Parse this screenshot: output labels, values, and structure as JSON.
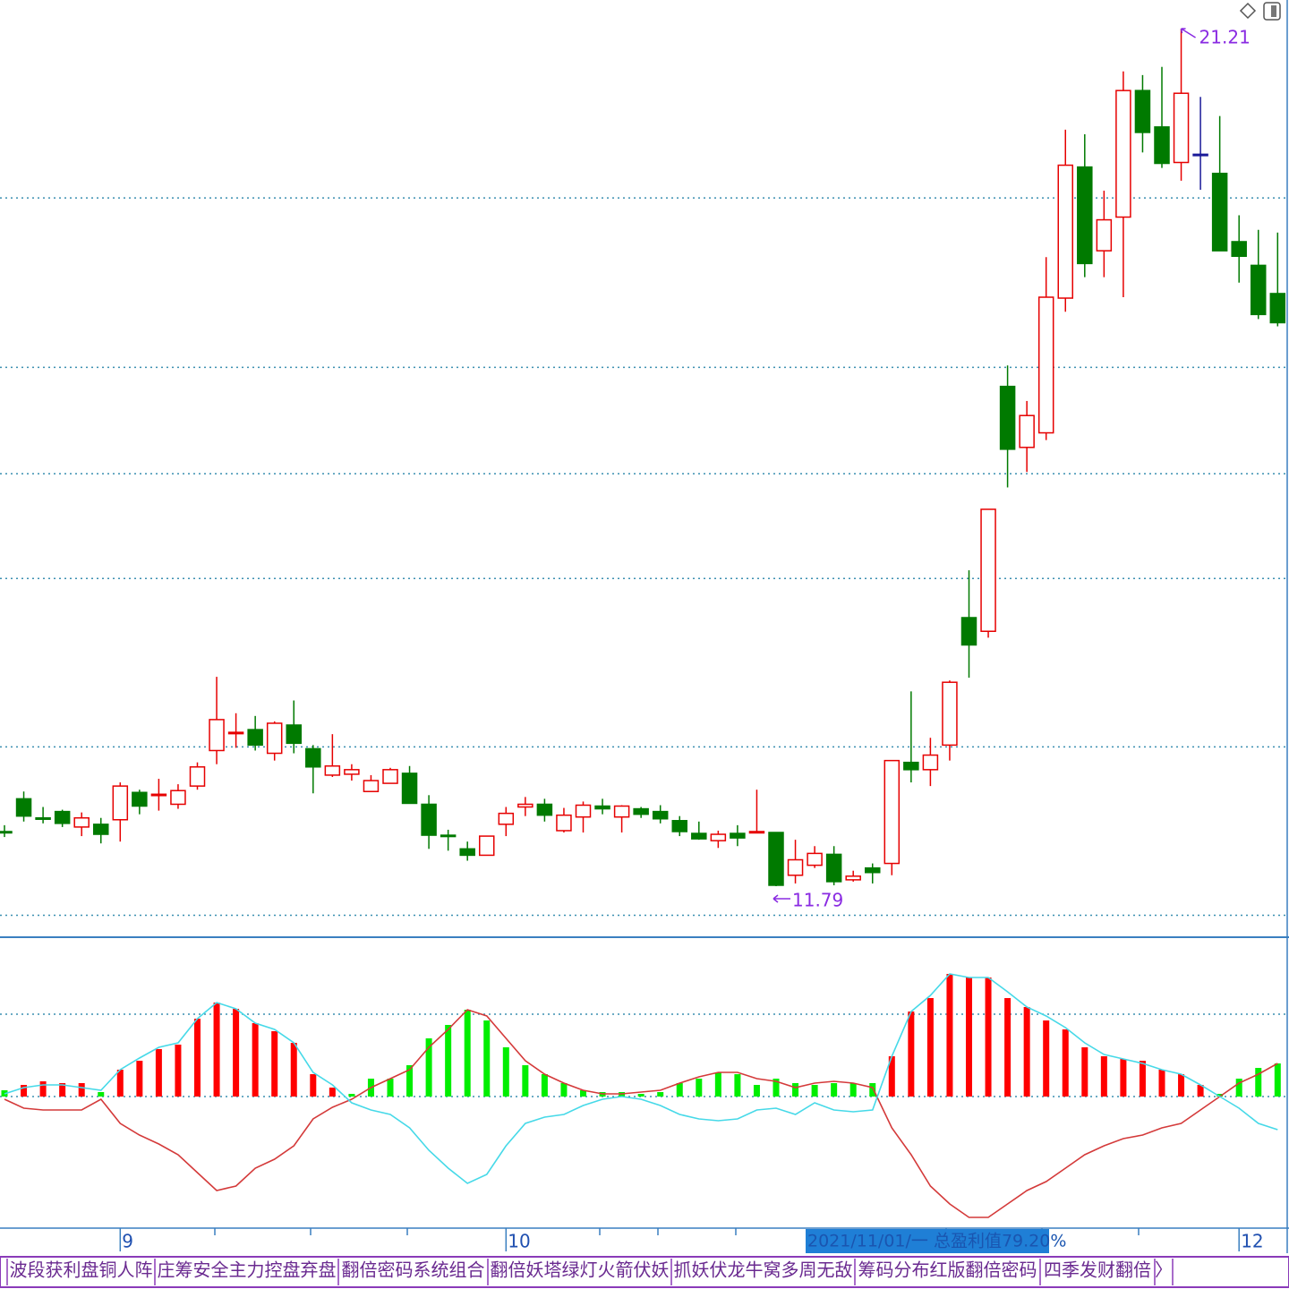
{
  "chart_data": {
    "type": "candlestick",
    "up_color": "#e60000",
    "down_color": "#007a00",
    "flat_color": "#1a1a99",
    "candles": {
      "open": [
        12.39,
        12.75,
        12.54,
        12.61,
        12.44,
        12.47,
        12.52,
        12.82,
        12.79,
        12.69,
        12.89,
        13.28,
        13.47,
        13.51,
        13.25,
        13.56,
        13.3,
        13.01,
        13.02,
        12.83,
        12.92,
        13.03,
        12.69,
        12.35,
        12.2,
        12.13,
        12.47,
        12.66,
        12.69,
        12.4,
        12.55,
        12.67,
        12.55,
        12.64,
        12.61,
        12.51,
        12.37,
        12.29,
        12.37,
        12.38,
        12.38,
        11.91,
        12.02,
        12.14,
        11.86,
        11.99,
        12.04,
        13.15,
        13.07,
        13.34,
        14.74,
        14.59,
        17.28,
        16.61,
        16.77,
        18.25,
        19.69,
        18.77,
        19.14,
        20.53,
        20.13,
        19.74,
        19.83,
        19.62,
        18.87,
        18.61,
        18.3
      ],
      "close": [
        12.38,
        12.56,
        12.53,
        12.48,
        12.54,
        12.36,
        12.89,
        12.67,
        12.8,
        12.84,
        13.1,
        13.62,
        13.48,
        13.34,
        13.58,
        13.36,
        13.1,
        13.11,
        13.07,
        12.95,
        13.07,
        12.7,
        12.35,
        12.34,
        12.13,
        12.34,
        12.59,
        12.69,
        12.57,
        12.57,
        12.68,
        12.64,
        12.67,
        12.58,
        12.53,
        12.39,
        12.31,
        12.36,
        12.32,
        12.39,
        11.8,
        12.08,
        12.15,
        11.84,
        11.9,
        11.94,
        13.17,
        13.07,
        13.23,
        14.03,
        14.44,
        15.93,
        16.59,
        16.96,
        18.26,
        19.71,
        18.63,
        19.11,
        20.53,
        20.07,
        19.73,
        20.5,
        19.83,
        18.77,
        18.71,
        18.07,
        17.98
      ],
      "high": [
        12.46,
        12.83,
        12.66,
        12.63,
        12.6,
        12.54,
        12.93,
        12.85,
        12.97,
        12.91,
        13.15,
        14.09,
        13.69,
        13.66,
        13.6,
        13.83,
        13.34,
        13.46,
        13.13,
        13.01,
        13.09,
        13.11,
        12.79,
        12.41,
        12.28,
        12.34,
        12.66,
        12.77,
        12.75,
        12.65,
        12.72,
        12.75,
        12.68,
        12.66,
        12.68,
        12.56,
        12.5,
        12.4,
        12.46,
        12.85,
        12.38,
        12.3,
        12.23,
        12.23,
        11.96,
        12.04,
        13.17,
        13.93,
        13.42,
        14.05,
        15.26,
        15.93,
        17.51,
        17.12,
        18.7,
        20.1,
        20.05,
        19.43,
        20.74,
        20.7,
        20.79,
        21.21,
        20.46,
        20.25,
        19.16,
        19.0,
        18.97
      ],
      "low": [
        12.33,
        12.5,
        12.48,
        12.44,
        12.34,
        12.26,
        12.28,
        12.58,
        12.62,
        12.64,
        12.85,
        13.13,
        13.31,
        13.28,
        13.17,
        13.25,
        12.81,
        12.99,
        12.95,
        12.83,
        12.92,
        12.7,
        12.2,
        12.18,
        12.07,
        12.13,
        12.34,
        12.56,
        12.5,
        12.38,
        12.38,
        12.58,
        12.38,
        12.54,
        12.48,
        12.34,
        12.3,
        12.21,
        12.23,
        12.37,
        11.79,
        11.82,
        11.99,
        11.8,
        11.84,
        11.82,
        11.91,
        12.93,
        12.89,
        13.17,
        14.08,
        14.52,
        16.17,
        16.34,
        16.69,
        18.1,
        18.48,
        18.48,
        18.26,
        19.85,
        19.68,
        19.54,
        19.44,
        18.77,
        18.42,
        18.02,
        17.94
      ]
    },
    "price_grid": [
      19.35,
      17.49,
      16.32,
      15.17,
      13.32,
      11.47
    ],
    "annotations": [
      {
        "index": 61,
        "value": 21.21,
        "color": "#8a2be2"
      },
      {
        "index": 40,
        "value": 11.79,
        "color": "#8a2be2"
      }
    ],
    "macd": {
      "bars": [
        0.07,
        0.13,
        0.17,
        0.15,
        0.15,
        0.05,
        0.3,
        0.4,
        0.53,
        0.58,
        0.87,
        1.05,
        0.98,
        0.82,
        0.73,
        0.6,
        0.25,
        0.1,
        0.03,
        0.2,
        0.2,
        0.35,
        0.65,
        0.8,
        0.97,
        0.85,
        0.55,
        0.35,
        0.25,
        0.15,
        0.07,
        0.05,
        0.05,
        0.03,
        0.05,
        0.15,
        0.2,
        0.27,
        0.25,
        0.13,
        0.2,
        0.15,
        0.13,
        0.15,
        0.15,
        0.15,
        0.45,
        0.95,
        1.1,
        1.37,
        1.33,
        1.33,
        1.1,
        1.0,
        0.85,
        0.75,
        0.55,
        0.45,
        0.42,
        0.4,
        0.3,
        0.25,
        0.13,
        0.03,
        0.2,
        0.32,
        0.37
      ],
      "bar_colors": [
        "#00ee00",
        "#ff0000",
        "#ff0000",
        "#ff0000",
        "#ff0000",
        "#00ee00",
        "#ff0000",
        "#ff0000",
        "#ff0000",
        "#ff0000",
        "#ff0000",
        "#ff0000",
        "#ff0000",
        "#ff0000",
        "#ff0000",
        "#ff0000",
        "#ff0000",
        "#ff0000",
        "#00ee00",
        "#00ee00",
        "#00ee00",
        "#00ee00",
        "#00ee00",
        "#00ee00",
        "#00ee00",
        "#00ee00",
        "#00ee00",
        "#00ee00",
        "#00ee00",
        "#00ee00",
        "#00ee00",
        "#00ee00",
        "#00ee00",
        "#00ee00",
        "#00ee00",
        "#00ee00",
        "#00ee00",
        "#00ee00",
        "#00ee00",
        "#00ee00",
        "#00ee00",
        "#00ee00",
        "#00ee00",
        "#00ee00",
        "#00ee00",
        "#00ee00",
        "#ff0000",
        "#ff0000",
        "#ff0000",
        "#ff0000",
        "#ff0000",
        "#ff0000",
        "#ff0000",
        "#ff0000",
        "#ff0000",
        "#ff0000",
        "#ff0000",
        "#ff0000",
        "#ff0000",
        "#ff0000",
        "#ff0000",
        "#ff0000",
        "#ff0000",
        "#00ee00",
        "#00ee00",
        "#00ee00",
        "#00ee00"
      ],
      "lines": [
        {
          "color": "#d43a3a",
          "values": [
            -0.03,
            -0.13,
            -0.15,
            -0.15,
            -0.15,
            -0.03,
            -0.3,
            -0.43,
            -0.53,
            -0.65,
            -0.85,
            -1.05,
            -1.0,
            -0.8,
            -0.7,
            -0.55,
            -0.25,
            -0.12,
            -0.03,
            0.1,
            0.2,
            0.3,
            0.55,
            0.75,
            0.97,
            0.9,
            0.65,
            0.4,
            0.25,
            0.15,
            0.07,
            0.03,
            0.03,
            0.05,
            0.07,
            0.15,
            0.22,
            0.27,
            0.27,
            0.2,
            0.17,
            0.1,
            0.15,
            0.17,
            0.15,
            0.1,
            -0.35,
            -0.65,
            -1.0,
            -1.2,
            -1.35,
            -1.35,
            -1.2,
            -1.05,
            -0.95,
            -0.8,
            -0.65,
            -0.55,
            -0.47,
            -0.43,
            -0.35,
            -0.3,
            -0.15,
            0,
            0.15,
            0.25,
            0.37
          ]
        },
        {
          "color": "#46d9e8",
          "values": [
            0.03,
            0.1,
            0.13,
            0.13,
            0.1,
            0.07,
            0.3,
            0.43,
            0.55,
            0.6,
            0.87,
            1.05,
            0.98,
            0.82,
            0.75,
            0.6,
            0.27,
            0.13,
            -0.07,
            -0.15,
            -0.2,
            -0.35,
            -0.6,
            -0.8,
            -0.97,
            -0.87,
            -0.55,
            -0.3,
            -0.23,
            -0.2,
            -0.1,
            -0.03,
            0,
            -0.03,
            -0.1,
            -0.2,
            -0.25,
            -0.27,
            -0.25,
            -0.15,
            -0.13,
            -0.2,
            -0.07,
            -0.15,
            -0.17,
            -0.15,
            0.45,
            0.95,
            1.13,
            1.37,
            1.33,
            1.33,
            1.17,
            1.0,
            0.9,
            0.77,
            0.6,
            0.47,
            0.42,
            0.37,
            0.3,
            0.25,
            0.13,
            0,
            -0.13,
            -0.3,
            -0.37
          ]
        }
      ],
      "grid": [
        0.92,
        0
      ]
    },
    "months": [
      {
        "index": 6,
        "text": "9"
      },
      {
        "index": 26,
        "text": "10"
      },
      {
        "index": 64,
        "text": "12"
      }
    ],
    "date_box": "2021/11/01/一  总盈利值79.20%",
    "tabs": [
      "波段获利盘铜人阵",
      "庄筹安全主力控盘弃盘",
      "翻倍密码系统组合",
      "翻倍妖塔绿灯火箭伏妖",
      "抓妖伏龙牛窝多周无敌",
      "筹码分布红版翻倍密码",
      "四季发财翻倍",
      "〉"
    ]
  }
}
